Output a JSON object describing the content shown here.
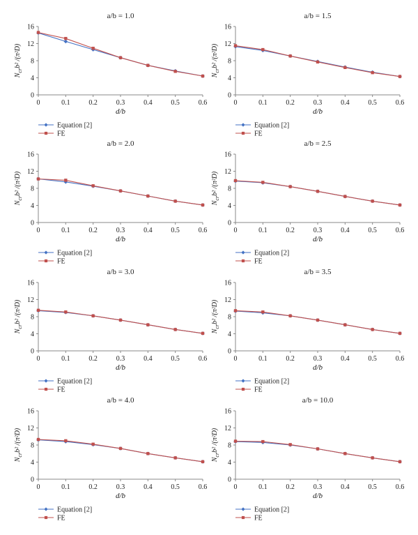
{
  "figure": {
    "xlabel": "d/b",
    "ylabel_main": "N",
    "ylabel_sub": "cr",
    "ylabel_rest": "b² /(π²D)",
    "legend": [
      "Equation [2]",
      "FE"
    ]
  },
  "colors": {
    "equation": "#4472c4",
    "fe": "#c0504d",
    "axis": "#888888",
    "text": "#222222"
  },
  "chart_data": [
    {
      "type": "line",
      "title": "a/b = 1.0",
      "x": [
        0,
        0.1,
        0.2,
        0.3,
        0.4,
        0.5,
        0.6
      ],
      "xlim": [
        0,
        0.6
      ],
      "ylim": [
        0,
        16
      ],
      "xticks": [
        "0",
        "0.1",
        "0.2",
        "0.3",
        "0.4",
        "0.5",
        "0.6"
      ],
      "yticks": [
        "0",
        "4",
        "8",
        "12",
        "16"
      ],
      "xlabel": "d/b",
      "ylabel": "Ncr b² /(π²D)",
      "legend_position": "bottom-left",
      "grid": false,
      "series": [
        {
          "name": "Equation [2]",
          "values": [
            14.5,
            12.5,
            10.6,
            8.7,
            6.9,
            5.6,
            4.4
          ]
        },
        {
          "name": "FE",
          "values": [
            14.6,
            13.2,
            10.9,
            8.7,
            6.9,
            5.5,
            4.4
          ]
        }
      ]
    },
    {
      "type": "line",
      "title": "a/b = 1.5",
      "x": [
        0,
        0.1,
        0.2,
        0.3,
        0.4,
        0.5,
        0.6
      ],
      "xlim": [
        0,
        0.6
      ],
      "ylim": [
        0,
        16
      ],
      "xticks": [
        "0",
        "0.1",
        "0.2",
        "0.3",
        "0.4",
        "0.5",
        "0.6"
      ],
      "yticks": [
        "0",
        "4",
        "8",
        "12",
        "16"
      ],
      "xlabel": "d/b",
      "ylabel": "Ncr b² /(π²D)",
      "legend_position": "bottom-left",
      "grid": false,
      "series": [
        {
          "name": "Equation [2]",
          "values": [
            11.3,
            10.4,
            9.1,
            7.8,
            6.5,
            5.3,
            4.3
          ]
        },
        {
          "name": "FE",
          "values": [
            11.5,
            10.6,
            9.1,
            7.7,
            6.4,
            5.2,
            4.3
          ]
        }
      ]
    },
    {
      "type": "line",
      "title": "a/b = 2.0",
      "x": [
        0,
        0.1,
        0.2,
        0.3,
        0.4,
        0.5,
        0.6
      ],
      "xlim": [
        0,
        0.6
      ],
      "ylim": [
        0,
        16
      ],
      "xticks": [
        "0",
        "0.1",
        "0.2",
        "0.3",
        "0.4",
        "0.5",
        "0.6"
      ],
      "yticks": [
        "0",
        "4",
        "8",
        "12",
        "16"
      ],
      "xlabel": "d/b",
      "ylabel": "Ncr b² /(π²D)",
      "legend_position": "bottom-left",
      "grid": false,
      "series": [
        {
          "name": "Equation [2]",
          "values": [
            10.2,
            9.5,
            8.5,
            7.4,
            6.2,
            5.0,
            4.1
          ]
        },
        {
          "name": "FE",
          "values": [
            10.2,
            9.9,
            8.6,
            7.4,
            6.2,
            5.0,
            4.1
          ]
        }
      ]
    },
    {
      "type": "line",
      "title": "a/b = 2.5",
      "x": [
        0,
        0.1,
        0.2,
        0.3,
        0.4,
        0.5,
        0.6
      ],
      "xlim": [
        0,
        0.6
      ],
      "ylim": [
        0,
        16
      ],
      "xticks": [
        "0",
        "0.1",
        "0.2",
        "0.3",
        "0.4",
        "0.5",
        "0.6"
      ],
      "yticks": [
        "0",
        "4",
        "8",
        "12",
        "16"
      ],
      "xlabel": "d/b",
      "ylabel": "Ncr b² /(π²D)",
      "legend_position": "bottom-left",
      "grid": false,
      "series": [
        {
          "name": "Equation [2]",
          "values": [
            9.7,
            9.3,
            8.4,
            7.3,
            6.1,
            5.0,
            4.1
          ]
        },
        {
          "name": "FE",
          "values": [
            9.8,
            9.4,
            8.4,
            7.3,
            6.1,
            5.0,
            4.1
          ]
        }
      ]
    },
    {
      "type": "line",
      "title": "a/b = 3.0",
      "x": [
        0,
        0.1,
        0.2,
        0.3,
        0.4,
        0.5,
        0.6
      ],
      "xlim": [
        0,
        0.6
      ],
      "ylim": [
        0,
        16
      ],
      "xticks": [
        "0",
        "0.1",
        "0.2",
        "0.3",
        "0.4",
        "0.5",
        "0.6"
      ],
      "yticks": [
        "0",
        "4",
        "8",
        "12",
        "16"
      ],
      "xlabel": "d/b",
      "ylabel": "Ncr b² /(π²D)",
      "legend_position": "bottom-left",
      "grid": false,
      "series": [
        {
          "name": "Equation [2]",
          "values": [
            9.4,
            9.0,
            8.2,
            7.2,
            6.1,
            5.0,
            4.1
          ]
        },
        {
          "name": "FE",
          "values": [
            9.5,
            9.1,
            8.2,
            7.2,
            6.1,
            5.0,
            4.1
          ]
        }
      ]
    },
    {
      "type": "line",
      "title": "a/b = 3.5",
      "x": [
        0,
        0.1,
        0.2,
        0.3,
        0.4,
        0.5,
        0.6
      ],
      "xlim": [
        0,
        0.6
      ],
      "ylim": [
        0,
        16
      ],
      "xticks": [
        "0",
        "0.1",
        "0.2",
        "0.3",
        "0.4",
        "0.5",
        "0.6"
      ],
      "yticks": [
        "0",
        "4",
        "8",
        "12",
        "16"
      ],
      "xlabel": "d/b",
      "ylabel": "Ncr b² /(π²D)",
      "legend_position": "bottom-left",
      "grid": false,
      "series": [
        {
          "name": "Equation [2]",
          "values": [
            9.3,
            8.9,
            8.2,
            7.2,
            6.1,
            5.0,
            4.1
          ]
        },
        {
          "name": "FE",
          "values": [
            9.4,
            9.1,
            8.2,
            7.2,
            6.1,
            5.0,
            4.1
          ]
        }
      ]
    },
    {
      "type": "line",
      "title": "a/b = 4.0",
      "x": [
        0,
        0.1,
        0.2,
        0.3,
        0.4,
        0.5,
        0.6
      ],
      "xlim": [
        0,
        0.6
      ],
      "ylim": [
        0,
        16
      ],
      "xticks": [
        "0",
        "0.1",
        "0.2",
        "0.3",
        "0.4",
        "0.5",
        "0.6"
      ],
      "yticks": [
        "0",
        "4",
        "8",
        "12",
        "16"
      ],
      "xlabel": "d/b",
      "ylabel": "Ncr b² /(π²D)",
      "legend_position": "bottom-left",
      "grid": false,
      "series": [
        {
          "name": "Equation [2]",
          "values": [
            9.2,
            8.8,
            8.1,
            7.2,
            6.0,
            5.0,
            4.1
          ]
        },
        {
          "name": "FE",
          "values": [
            9.3,
            9.0,
            8.2,
            7.2,
            6.0,
            5.0,
            4.1
          ]
        }
      ]
    },
    {
      "type": "line",
      "title": "a/b = 10.0",
      "x": [
        0,
        0.1,
        0.2,
        0.3,
        0.4,
        0.5,
        0.6
      ],
      "xlim": [
        0,
        0.6
      ],
      "ylim": [
        0,
        16
      ],
      "xticks": [
        "0",
        "0.1",
        "0.2",
        "0.3",
        "0.4",
        "0.5",
        "0.6"
      ],
      "yticks": [
        "0",
        "4",
        "8",
        "12",
        "16"
      ],
      "xlabel": "d/b",
      "ylabel": "Ncr b² /(π²D)",
      "legend_position": "bottom-left",
      "grid": false,
      "series": [
        {
          "name": "Equation [2]",
          "values": [
            8.8,
            8.6,
            8.0,
            7.1,
            6.0,
            5.0,
            4.1
          ]
        },
        {
          "name": "FE",
          "values": [
            8.9,
            8.8,
            8.1,
            7.1,
            6.0,
            5.0,
            4.1
          ]
        }
      ]
    }
  ]
}
